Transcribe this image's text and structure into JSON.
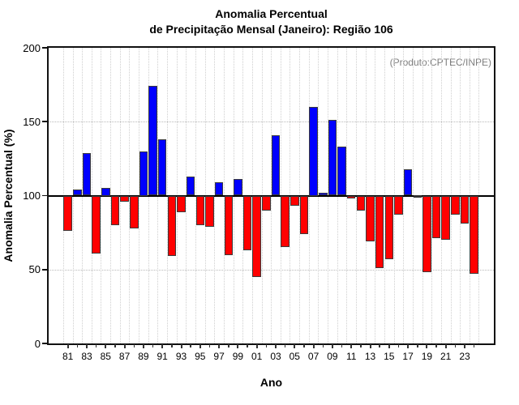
{
  "title": {
    "line1": "Anomalia Percentual",
    "line2": "de Precipitação Mensal (Janeiro): Região 106"
  },
  "annotation": {
    "text": "(Produto:CPTEC/INPE)"
  },
  "axes": {
    "y_label": "Anomalia Percentual (%)",
    "x_label": "Ano",
    "y_ticks": [
      0,
      50,
      100,
      150,
      200
    ],
    "y_range": [
      0,
      200
    ],
    "dotted_h_gridlines": [
      50,
      150
    ]
  },
  "colors": {
    "above_baseline": "#0000ff",
    "below_baseline": "#ff0000",
    "bar_outline": "#3b3b3b",
    "axis_box": "#111111",
    "grid": "#cfcfcf",
    "annotation_text": "#7f7f7f",
    "baseline_line": "#000000"
  },
  "chart_data": {
    "type": "bar",
    "title": "Anomalia Percentual de Precipitação Mensal (Janeiro): Região 106",
    "xlabel": "Ano",
    "ylabel": "Anomalia Percentual (%)",
    "ylim": [
      0,
      200
    ],
    "baseline": 100,
    "grid": "dotted",
    "legend_position": "none",
    "categories": [
      "81",
      "82",
      "83",
      "84",
      "85",
      "86",
      "87",
      "88",
      "89",
      "90",
      "91",
      "92",
      "93",
      "94",
      "95",
      "96",
      "97",
      "98",
      "99",
      "00",
      "01",
      "02",
      "03",
      "04",
      "05",
      "06",
      "07",
      "08",
      "09",
      "10",
      "11",
      "12",
      "13",
      "14",
      "15",
      "16",
      "17",
      "18",
      "19",
      "20",
      "21",
      "22",
      "23",
      "24"
    ],
    "values": [
      76,
      104,
      129,
      61,
      105,
      80,
      96,
      78,
      130,
      174,
      138,
      59,
      89,
      113,
      80,
      79,
      109,
      60,
      111,
      63,
      45,
      90,
      141,
      65,
      93,
      74,
      160,
      102,
      151,
      133,
      98,
      90,
      69,
      51,
      57,
      87,
      118,
      100,
      48,
      71,
      70,
      87,
      81,
      47
    ],
    "x_tick_labels_shown": [
      "81",
      "83",
      "85",
      "87",
      "89",
      "91",
      "93",
      "95",
      "97",
      "99",
      "01",
      "03",
      "05",
      "07",
      "09",
      "11",
      "13",
      "15",
      "17",
      "19",
      "21",
      "23"
    ]
  }
}
